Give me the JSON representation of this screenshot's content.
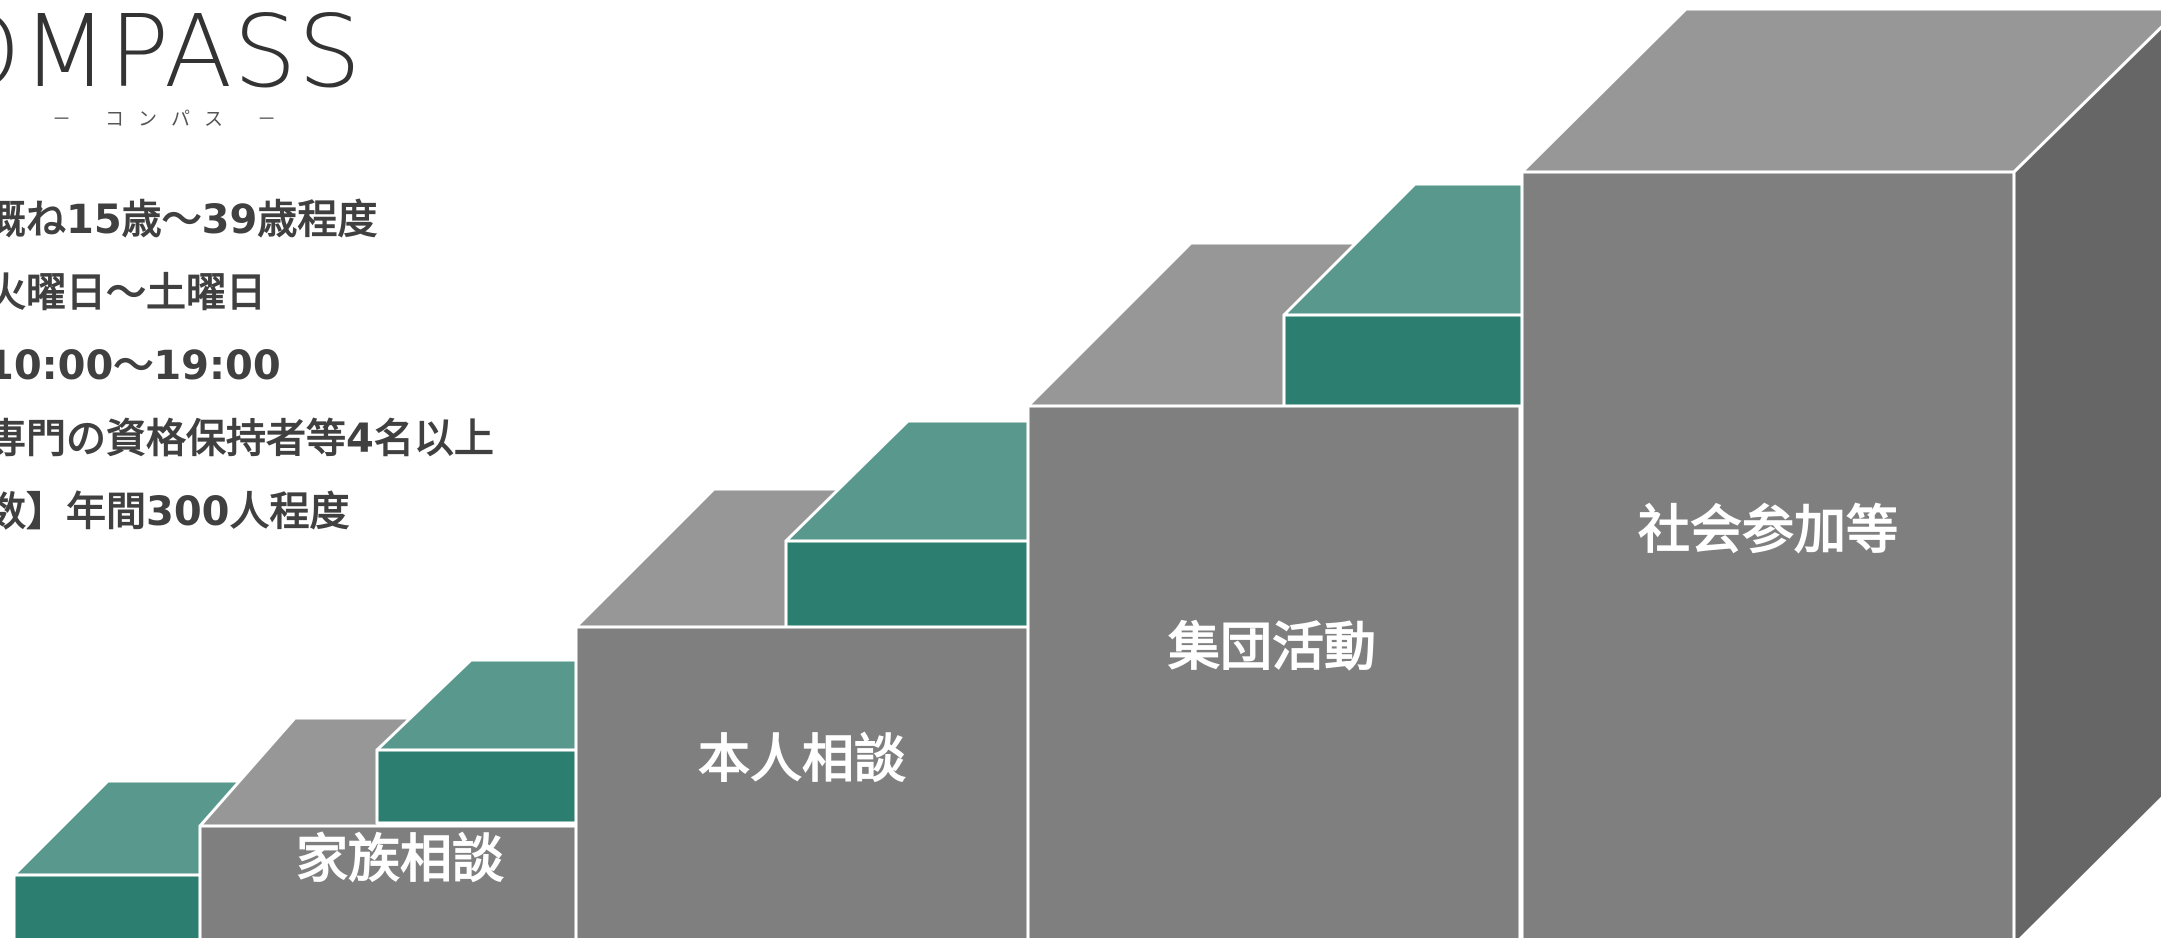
{
  "logo": {
    "wordmark": "OMPASS",
    "subtitle": "－ コンパス －"
  },
  "info": [
    "概ね15歳～39歳程度",
    "火曜日～土曜日",
    "10:00～19:00",
    "専門の資格保持者等4名以上",
    "数】年間300人程度"
  ],
  "steps": [
    {
      "label": "家族相談"
    },
    {
      "label": "本人相談"
    },
    {
      "label": "集団活動"
    },
    {
      "label": "社会参加等"
    }
  ],
  "colors": {
    "step_front": "#7f7f7f",
    "step_top": "#979797",
    "step_side": "#666666",
    "teal_front": "#2c7f70",
    "teal_top": "#58988d",
    "text_dark": "#404040",
    "background": "#ffffff"
  }
}
